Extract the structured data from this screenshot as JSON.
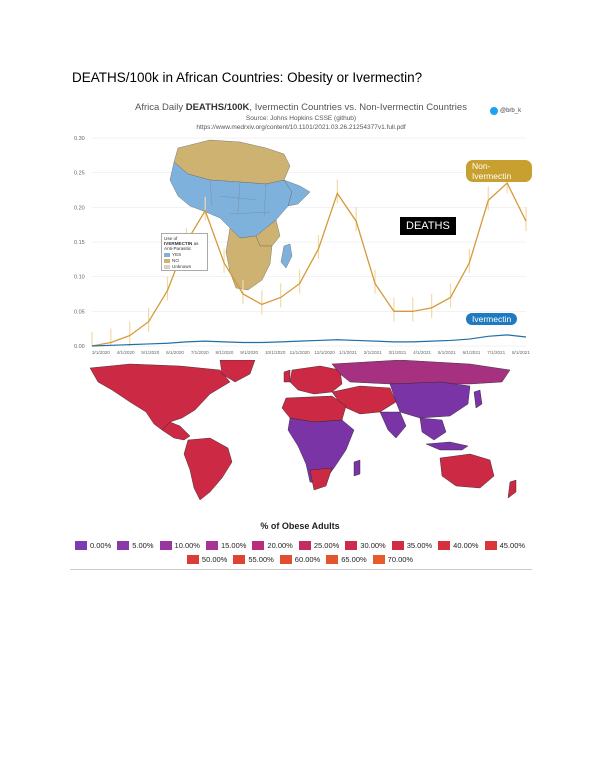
{
  "document": {
    "title": "DEATHS/100k in African Countries: Obesity or Ivermectin?"
  },
  "chart": {
    "title_prefix": "Africa Daily ",
    "title_bold": "DEATHS/100K",
    "title_suffix": ", Ivermectin Countries vs. Non-Ivermectin Countries",
    "source": "Source: Johns Hopkins CSSE (github)",
    "url": "https://www.medrxiv.org/content/10.1101/2021.03.26.21254377v1.full.pdf",
    "twitter_handle": "@brb_k",
    "annotation": "DEATHS",
    "colors": {
      "non_ivermectin": "#d49a3a",
      "ivermectin": "#1f6fa8",
      "non_ivermectin_tag": "#c8a030",
      "ivermectin_tag": "#1f7ac0"
    }
  },
  "chart_data": {
    "type": "line",
    "title": "Africa Daily DEATHS/100K, Ivermectin Countries vs. Non-Ivermectin Countries",
    "xlabel": "",
    "ylabel": "",
    "ylim": [
      0,
      0.3
    ],
    "y_ticks": [
      "0.00",
      "0.05",
      "0.10",
      "0.15",
      "0.20",
      "0.25",
      "0.30"
    ],
    "x_ticks": [
      "3/1/2020",
      "4/1/2020",
      "5/1/2020",
      "6/1/2020",
      "7/1/2020",
      "8/1/2020",
      "9/1/2020",
      "10/1/2020",
      "11/1/2020",
      "12/1/2020",
      "1/1/2021",
      "2/1/2021",
      "3/1/2021",
      "4/1/2021",
      "5/1/2021",
      "6/1/2021",
      "7/1/2021",
      "8/1/2021"
    ],
    "series": [
      {
        "name": "Non-Ivermectin",
        "values": [
          0.0,
          0.005,
          0.015,
          0.035,
          0.08,
          0.15,
          0.195,
          0.12,
          0.075,
          0.06,
          0.07,
          0.09,
          0.14,
          0.22,
          0.18,
          0.09,
          0.05,
          0.05,
          0.055,
          0.07,
          0.12,
          0.21,
          0.235,
          0.18
        ]
      },
      {
        "name": "Ivermectin",
        "values": [
          0.0,
          0.001,
          0.002,
          0.003,
          0.004,
          0.006,
          0.007,
          0.006,
          0.005,
          0.005,
          0.006,
          0.007,
          0.008,
          0.009,
          0.008,
          0.007,
          0.006,
          0.006,
          0.007,
          0.008,
          0.01,
          0.014,
          0.016,
          0.013
        ]
      }
    ]
  },
  "africa_inset": {
    "legend_title_prefix": "Use of ",
    "legend_title_bold": "IVERMECTIN",
    "legend_title_suffix": "as Anti-Parasitic",
    "items": [
      {
        "label": "YES",
        "color": "#7eb2dd"
      },
      {
        "label": "NO",
        "color": "#cdb272"
      },
      {
        "label": "Unknown",
        "color": "#d8cfc9"
      }
    ]
  },
  "obesity_map": {
    "title": "% of Obese Adults",
    "legend_row1": [
      {
        "label": "0.00%",
        "color": "#7b3cb0"
      },
      {
        "label": "5.00%",
        "color": "#8a38a8"
      },
      {
        "label": "10.00%",
        "color": "#99359f"
      },
      {
        "label": "15.00%",
        "color": "#a83296"
      },
      {
        "label": "20.00%",
        "color": "#b82e7c"
      },
      {
        "label": "25.00%",
        "color": "#c42b62"
      },
      {
        "label": "30.00%",
        "color": "#cc2a4e"
      },
      {
        "label": "35.00%",
        "color": "#d12c44"
      },
      {
        "label": "40.00%",
        "color": "#d6303e"
      },
      {
        "label": "45.00%",
        "color": "#da3639"
      }
    ],
    "legend_row2": [
      {
        "label": "50.00%",
        "color": "#dd3c36"
      },
      {
        "label": "55.00%",
        "color": "#df4433"
      },
      {
        "label": "60.00%",
        "color": "#e24c30"
      },
      {
        "label": "65.00%",
        "color": "#e4542d"
      },
      {
        "label": "70.00%",
        "color": "#e65c2b"
      }
    ],
    "colors": {
      "high": "#cc2a44",
      "low": "#7a34a6",
      "mid": "#a53180"
    }
  }
}
